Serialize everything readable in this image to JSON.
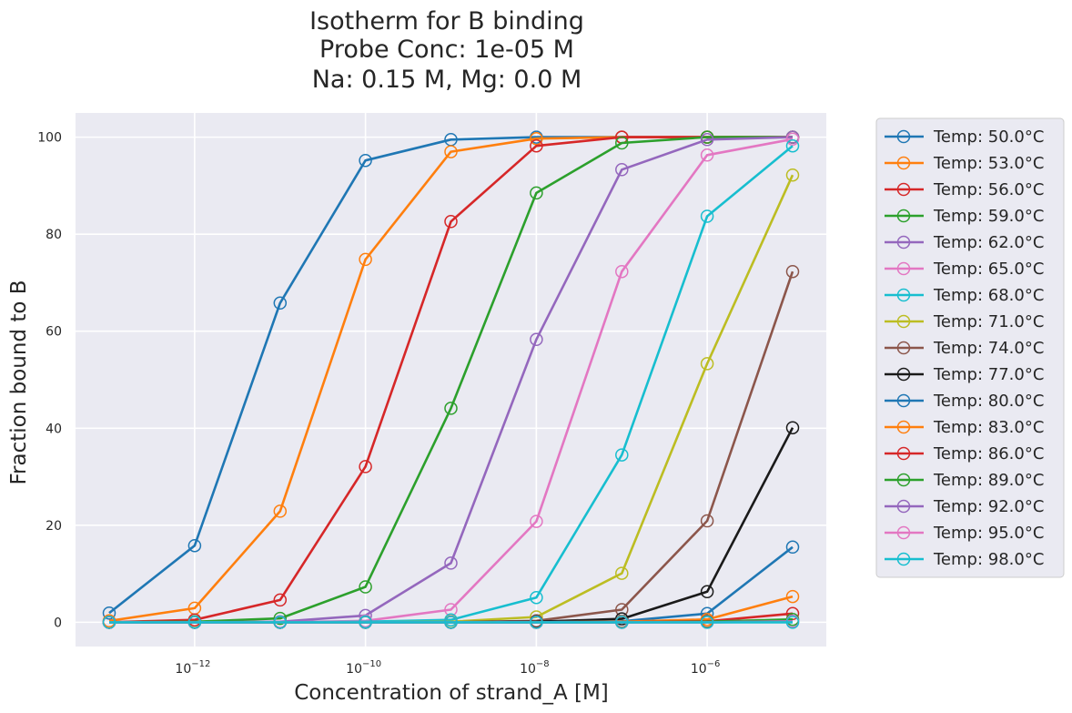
{
  "chart_data": {
    "type": "line",
    "title_lines": [
      "Isotherm for B binding",
      "Probe Conc: 1e-05 M",
      "Na: 0.15 M, Mg: 0.0 M"
    ],
    "xlabel": "Concentration of strand_A [M]",
    "ylabel": "Fraction bound to B",
    "x_scale": "log",
    "x": [
      1e-13,
      1e-12,
      1e-11,
      1e-10,
      1e-09,
      1e-08,
      1e-07,
      1e-06,
      1e-05
    ],
    "xlim": [
      1e-13,
      1e-05
    ],
    "ylim": [
      -5,
      105
    ],
    "x_ticks": [
      {
        "value": 1e-12,
        "base": "10",
        "exp": "−12"
      },
      {
        "value": 1e-10,
        "base": "10",
        "exp": "−10"
      },
      {
        "value": 1e-08,
        "base": "10",
        "exp": "−8"
      },
      {
        "value": 1e-06,
        "base": "10",
        "exp": "−6"
      }
    ],
    "y_ticks": [
      "0",
      "20",
      "40",
      "60",
      "80",
      "100"
    ],
    "grid": true,
    "legend_position": "outside-right",
    "series": [
      {
        "name": "Temp: 50.0°C",
        "color": "#1f77b4",
        "values": [
          1.9,
          15.8,
          65.8,
          95.2,
          99.5,
          100,
          100,
          100,
          100
        ]
      },
      {
        "name": "Temp: 53.0°C",
        "color": "#ff7f0e",
        "values": [
          0.3,
          2.9,
          22.9,
          74.8,
          97.0,
          99.7,
          100,
          100,
          100
        ]
      },
      {
        "name": "Temp: 56.0°C",
        "color": "#d62728",
        "values": [
          0.0,
          0.5,
          4.6,
          32.1,
          82.6,
          98.2,
          100,
          100,
          100
        ]
      },
      {
        "name": "Temp: 59.0°C",
        "color": "#2ca02c",
        "values": [
          0.0,
          0.1,
          0.8,
          7.3,
          44.1,
          88.5,
          98.8,
          100,
          100
        ]
      },
      {
        "name": "Temp: 62.0°C",
        "color": "#9467bd",
        "values": [
          0.0,
          0.0,
          0.1,
          1.4,
          12.2,
          58.3,
          93.3,
          99.5,
          100
        ]
      },
      {
        "name": "Temp: 65.0°C",
        "color": "#e377c2",
        "values": [
          0.0,
          0.0,
          0.0,
          0.3,
          2.6,
          20.8,
          72.3,
          96.3,
          99.6
        ]
      },
      {
        "name": "Temp: 68.0°C",
        "color": "#17becf",
        "values": [
          0.0,
          0.0,
          0.0,
          0.1,
          0.5,
          5.1,
          34.5,
          83.7,
          98.2
        ]
      },
      {
        "name": "Temp: 71.0°C",
        "color": "#bcbd22",
        "values": [
          0.0,
          0.0,
          0.0,
          0.0,
          0.1,
          1.1,
          10.1,
          53.3,
          92.2
        ]
      },
      {
        "name": "Temp: 74.0°C",
        "color": "#8c564b",
        "values": [
          0.0,
          0.0,
          0.0,
          0.0,
          0.0,
          0.3,
          2.6,
          20.9,
          72.3
        ]
      },
      {
        "name": "Temp: 77.0°C",
        "color": "#1a1a1a",
        "values": [
          0.0,
          0.0,
          0.0,
          0.0,
          0.0,
          0.1,
          0.7,
          6.3,
          40.1
        ]
      },
      {
        "name": "Temp: 80.0°C",
        "color": "#1f77b4",
        "values": [
          0.0,
          0.0,
          0.0,
          0.0,
          0.0,
          0.0,
          0.2,
          1.8,
          15.5
        ]
      },
      {
        "name": "Temp: 83.0°C",
        "color": "#ff7f0e",
        "values": [
          0.0,
          0.0,
          0.0,
          0.0,
          0.0,
          0.0,
          0.1,
          0.6,
          5.3
        ]
      },
      {
        "name": "Temp: 86.0°C",
        "color": "#d62728",
        "values": [
          0.0,
          0.0,
          0.0,
          0.0,
          0.0,
          0.0,
          0.0,
          0.2,
          1.8
        ]
      },
      {
        "name": "Temp: 89.0°C",
        "color": "#2ca02c",
        "values": [
          0.0,
          0.0,
          0.0,
          0.0,
          0.0,
          0.0,
          0.0,
          0.1,
          0.6
        ]
      },
      {
        "name": "Temp: 92.0°C",
        "color": "#9467bd",
        "values": [
          0.0,
          0.0,
          0.0,
          0.0,
          0.0,
          0.0,
          0.0,
          0.0,
          0.2
        ]
      },
      {
        "name": "Temp: 95.0°C",
        "color": "#e377c2",
        "values": [
          0.0,
          0.0,
          0.0,
          0.0,
          0.0,
          0.0,
          0.0,
          0.0,
          0.1
        ]
      },
      {
        "name": "Temp: 98.0°C",
        "color": "#17becf",
        "values": [
          0.0,
          0.0,
          0.0,
          0.0,
          0.0,
          0.0,
          0.0,
          0.0,
          0.0
        ]
      }
    ]
  }
}
